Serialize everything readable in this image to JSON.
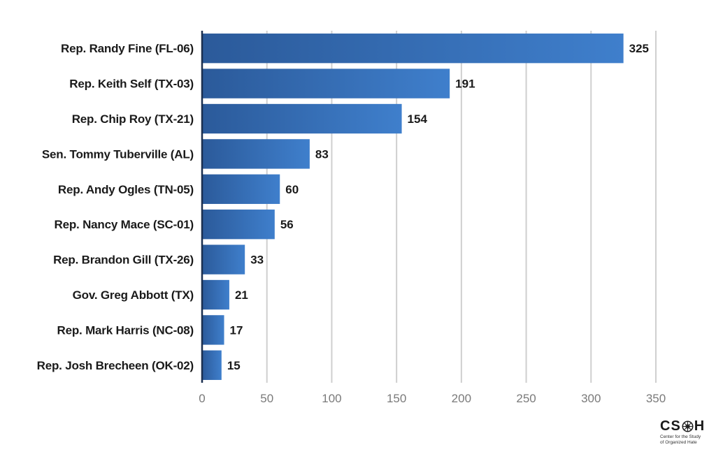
{
  "chart_data": {
    "type": "bar",
    "orientation": "horizontal",
    "categories": [
      "Rep. Randy Fine (FL-06)",
      "Rep. Keith Self (TX-03)",
      "Rep. Chip Roy (TX-21)",
      "Sen. Tommy Tuberville (AL)",
      "Rep. Andy Ogles (TN-05)",
      "Rep. Nancy Mace (SC-01)",
      "Rep. Brandon Gill (TX-26)",
      "Gov. Greg Abbott (TX)",
      "Rep. Mark Harris (NC-08)",
      "Rep. Josh Brecheen (OK-02)"
    ],
    "values": [
      325,
      191,
      154,
      83,
      60,
      56,
      33,
      21,
      17,
      15
    ],
    "xlim": [
      0,
      350
    ],
    "xticks": [
      0,
      50,
      100,
      150,
      200,
      250,
      300,
      350
    ],
    "grid": "vertical",
    "data_labels": true,
    "colors": {
      "bar_dark": "#2b5a9a",
      "bar_light": "#3f7fcc",
      "grid": "#cfcfcf",
      "axis": "#1a2f4f"
    }
  },
  "logo": {
    "mark": "CSOH",
    "tagline_1": "Center for the Study",
    "tagline_2": "of Organized Hate"
  }
}
